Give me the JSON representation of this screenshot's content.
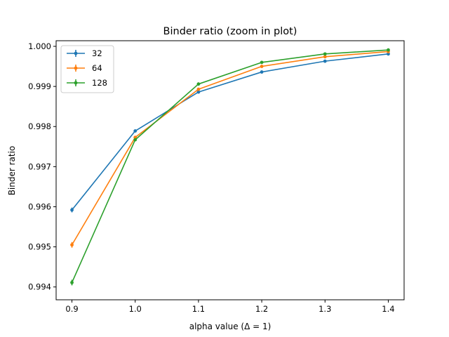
{
  "chart_data": {
    "type": "line",
    "title": "Binder ratio (zoom in plot)",
    "xlabel": "alpha value (Δ = 1)",
    "ylabel": "Binder ratio",
    "x": [
      0.9,
      1.0,
      1.1,
      1.2,
      1.3,
      1.4
    ],
    "xlim": [
      0.875,
      1.425
    ],
    "ylim": [
      0.99368,
      1.00014
    ],
    "xticks": [
      "0.9",
      "1.0",
      "1.1",
      "1.2",
      "1.3",
      "1.4"
    ],
    "yticks": [
      "0.994",
      "0.995",
      "0.996",
      "0.997",
      "0.998",
      "0.999",
      "1.000"
    ],
    "legend_position": "upper left",
    "grid": false,
    "series": [
      {
        "name": "32",
        "color": "#1f77b4",
        "values": [
          0.99592,
          0.99789,
          0.99886,
          0.99936,
          0.99963,
          0.99981
        ],
        "errors": [
          6e-05,
          3e-05,
          2e-05,
          1e-05,
          1e-05,
          1e-05
        ]
      },
      {
        "name": "64",
        "color": "#ff7f0e",
        "values": [
          0.99505,
          0.99773,
          0.99893,
          0.9995,
          0.99974,
          0.99987
        ],
        "errors": [
          7e-05,
          3e-05,
          2e-05,
          1e-05,
          1e-05,
          1e-05
        ]
      },
      {
        "name": "128",
        "color": "#2ca02c",
        "values": [
          0.99411,
          0.99767,
          0.99906,
          0.9996,
          0.99981,
          0.99991
        ],
        "errors": [
          7e-05,
          3e-05,
          2e-05,
          1e-05,
          1e-05,
          1e-05
        ]
      }
    ]
  }
}
